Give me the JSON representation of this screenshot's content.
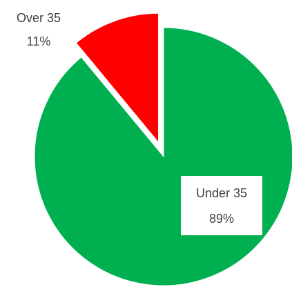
{
  "chart_data": {
    "type": "pie",
    "title": "",
    "legend": "none",
    "slices": [
      {
        "label": "Under 35",
        "value": 89,
        "value_label": "89%",
        "color": "#00B050",
        "exploded": false
      },
      {
        "label": "Over 35",
        "value": 11,
        "value_label": "11%",
        "color": "#FF0000",
        "exploded": true
      }
    ],
    "start_angle_deg": 0,
    "direction": "clockwise"
  }
}
